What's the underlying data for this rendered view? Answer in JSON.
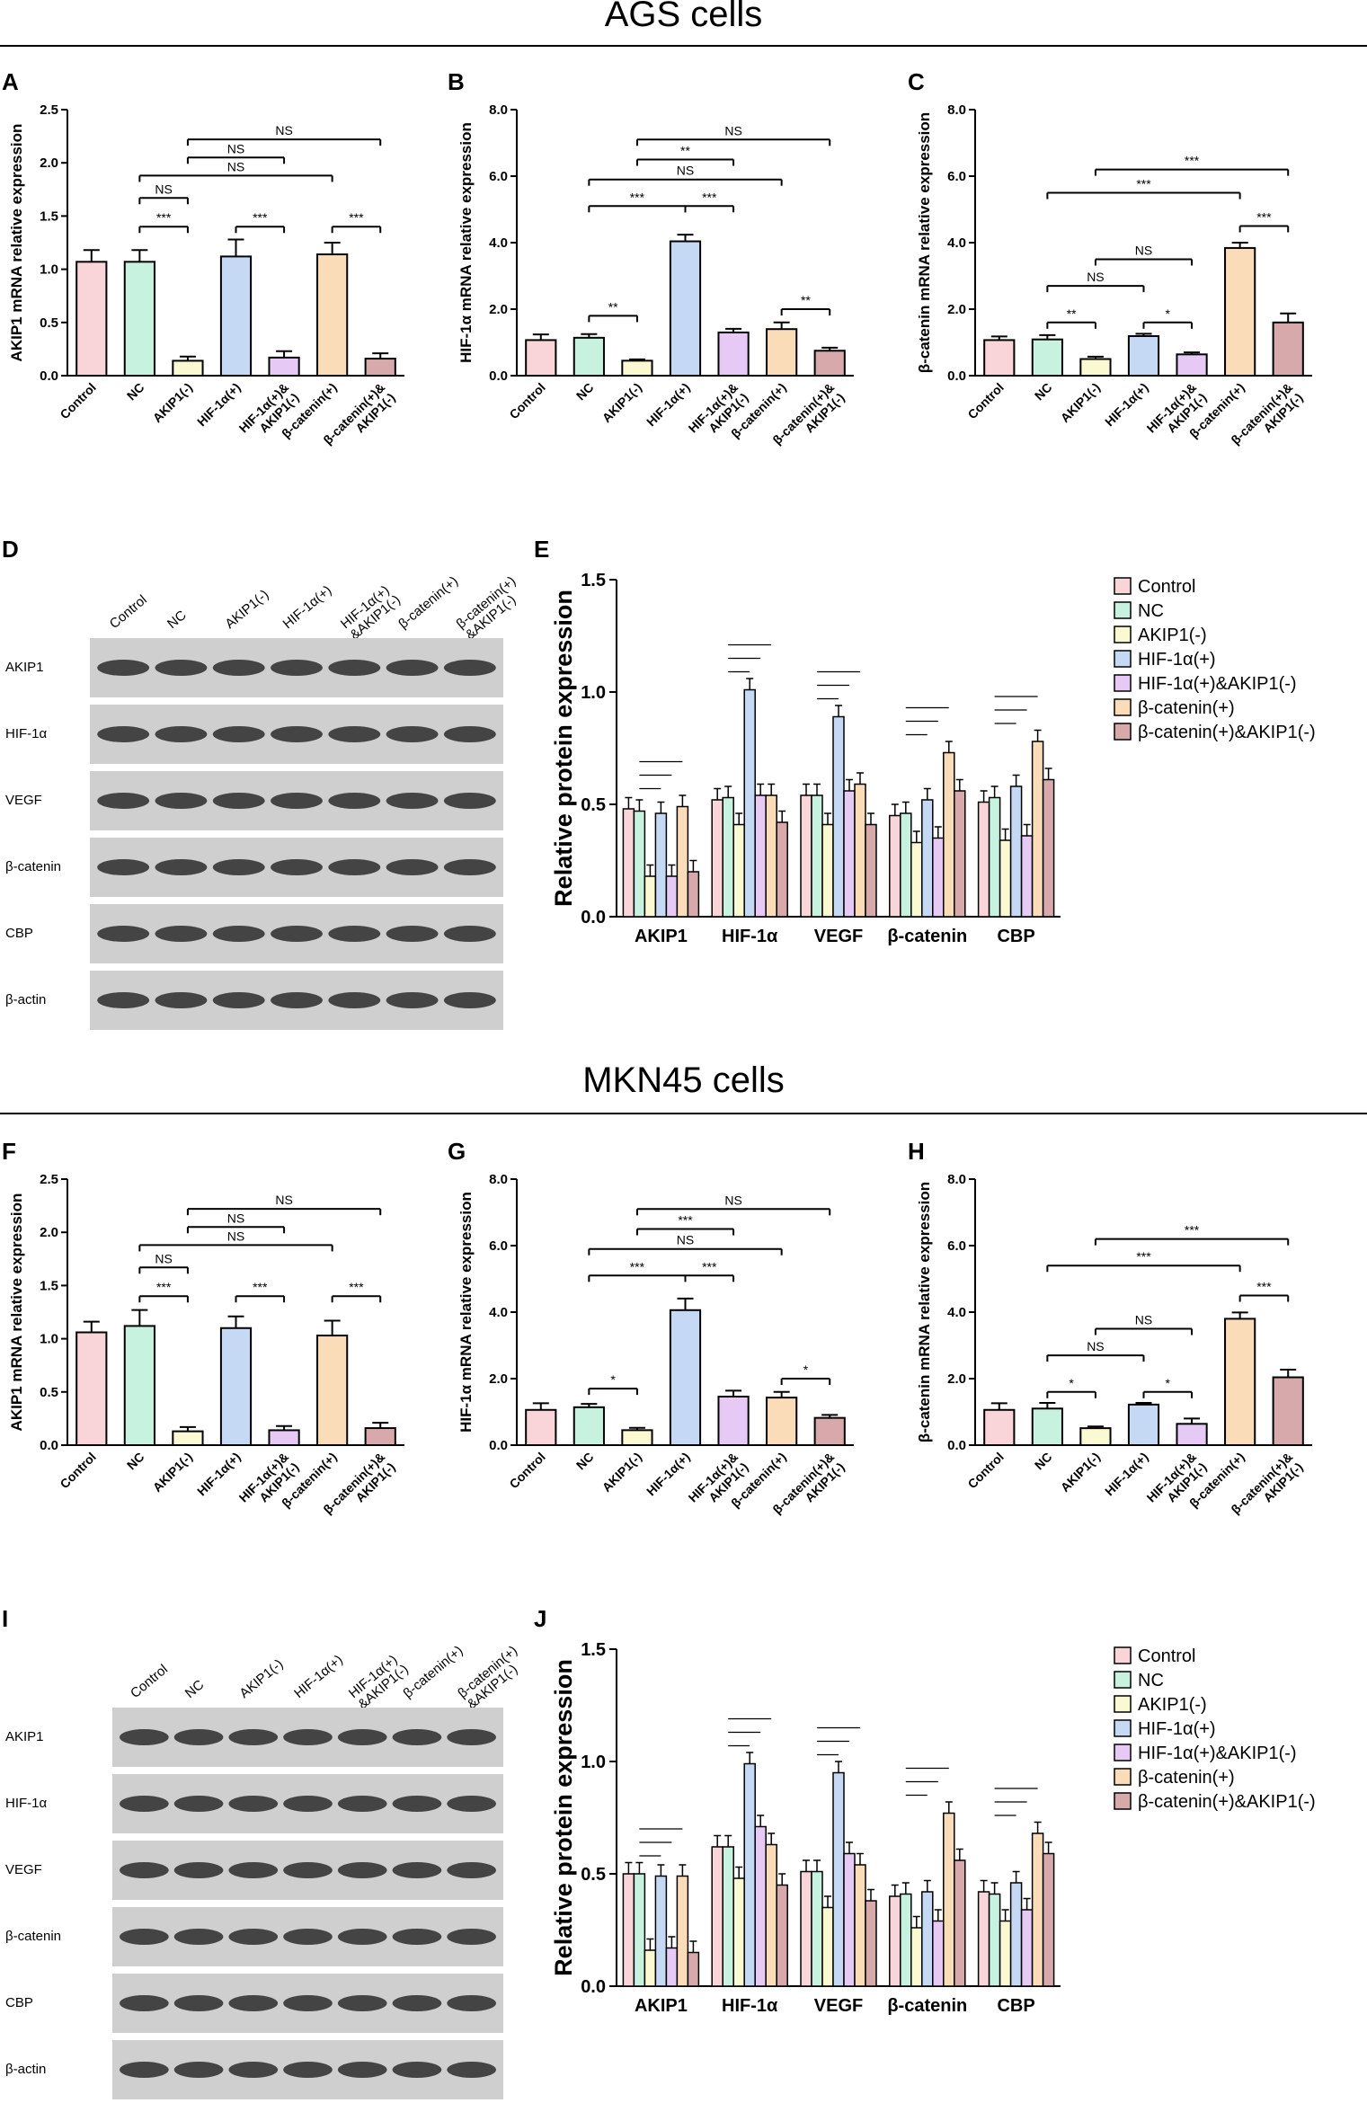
{
  "sections": [
    "AGS cells",
    "MKN45 cells"
  ],
  "colors": [
    "#f9d4d8",
    "#c8f2e0",
    "#fbf9d2",
    "#c6d9f4",
    "#e7c9f6",
    "#fbdcb8",
    "#d8a9aa"
  ],
  "groups": [
    "Control",
    "NC",
    "AKIP1(-)",
    "HIF-1α(+)",
    "HIF-1α(+)&AKIP1(-)",
    "β-catenin(+)",
    "β-catenin(+)&AKIP1(-)"
  ],
  "blot": {
    "lanes": [
      "Control",
      "NC",
      "AKIP1(-)",
      "HIF-1α(+)",
      "HIF-1α(+)\n&AKIP1(-)",
      "β-catenin(+)",
      "β-catenin(+)\n&AKIP1(-)"
    ],
    "rows": [
      "AKIP1",
      "HIF-1α",
      "VEGF",
      "β-catenin",
      "CBP",
      "β-actin"
    ]
  },
  "mrna_categories": [
    "Control",
    "NC",
    "AKIP1(-)",
    "HIF-1α(+)",
    "HIF-1α(+)&\nAKIP1(-)",
    "β-catenin(+)",
    "β-catenin(+)&\nAKIP1(-)"
  ],
  "panel_letters": {
    "A": "A",
    "B": "B",
    "C": "C",
    "D": "D",
    "E": "E",
    "F": "F",
    "G": "G",
    "H": "H",
    "I": "I",
    "J": "J"
  },
  "chart_data": [
    {
      "panel": "A",
      "type": "bar",
      "ylabel": "AKIP1 mRNA relative expression",
      "ylim": [
        0,
        2.5
      ],
      "yticks": [
        "0.0",
        "0.5",
        "1.0",
        "1.5",
        "2.0",
        "2.5"
      ],
      "values": [
        1.07,
        1.07,
        0.14,
        1.12,
        0.17,
        1.14,
        0.16
      ],
      "errors": [
        0.11,
        0.11,
        0.04,
        0.16,
        0.06,
        0.11,
        0.05
      ],
      "brackets": [
        {
          "from": 2,
          "to": 6,
          "label": "NS",
          "y": 2.22
        },
        {
          "from": 2,
          "to": 4,
          "label": "NS",
          "y": 2.05
        },
        {
          "from": 1,
          "to": 5,
          "label": "NS",
          "y": 1.88
        },
        {
          "from": 1,
          "to": 2,
          "label": "NS",
          "y": 1.67
        },
        {
          "from": 1,
          "to": 2,
          "label": "***",
          "y": 1.4
        },
        {
          "from": 3,
          "to": 4,
          "label": "***",
          "y": 1.4
        },
        {
          "from": 5,
          "to": 6,
          "label": "***",
          "y": 1.4
        }
      ]
    },
    {
      "panel": "B",
      "type": "bar",
      "ylabel": "HIF-1α mRNA relative expression",
      "ylim": [
        0,
        8
      ],
      "yticks": [
        "0.0",
        "2.0",
        "4.0",
        "6.0",
        "8.0"
      ],
      "values": [
        1.07,
        1.14,
        0.45,
        4.04,
        1.3,
        1.4,
        0.75
      ],
      "errors": [
        0.17,
        0.11,
        0.04,
        0.2,
        0.11,
        0.2,
        0.09
      ],
      "brackets": [
        {
          "from": 2,
          "to": 6,
          "label": "NS",
          "y": 7.1
        },
        {
          "from": 2,
          "to": 4,
          "label": "**",
          "y": 6.5
        },
        {
          "from": 1,
          "to": 5,
          "label": "NS",
          "y": 5.9
        },
        {
          "from": 1,
          "to": 3,
          "label": "***",
          "y": 5.1
        },
        {
          "from": 3,
          "to": 4,
          "label": "***",
          "y": 5.1
        },
        {
          "from": 1,
          "to": 2,
          "label": "**",
          "y": 1.8
        },
        {
          "from": 5,
          "to": 6,
          "label": "**",
          "y": 2.0
        }
      ]
    },
    {
      "panel": "C",
      "type": "bar",
      "ylabel": "β-catenin mRNA relative expression",
      "ylim": [
        0,
        8
      ],
      "yticks": [
        "0.0",
        "2.0",
        "4.0",
        "6.0",
        "8.0"
      ],
      "values": [
        1.07,
        1.09,
        0.5,
        1.19,
        0.64,
        3.84,
        1.6
      ],
      "errors": [
        0.11,
        0.13,
        0.07,
        0.07,
        0.06,
        0.16,
        0.27
      ],
      "brackets": [
        {
          "from": 2,
          "to": 6,
          "label": "***",
          "y": 6.2
        },
        {
          "from": 1,
          "to": 5,
          "label": "***",
          "y": 5.5
        },
        {
          "from": 2,
          "to": 4,
          "label": "NS",
          "y": 3.5
        },
        {
          "from": 1,
          "to": 3,
          "label": "NS",
          "y": 2.7
        },
        {
          "from": 1,
          "to": 2,
          "label": "**",
          "y": 1.6
        },
        {
          "from": 3,
          "to": 4,
          "label": "*",
          "y": 1.6
        },
        {
          "from": 5,
          "to": 6,
          "label": "***",
          "y": 4.5
        }
      ]
    },
    {
      "panel": "E",
      "type": "grouped-bar",
      "ylabel": "Relative protein expression",
      "ylim": [
        0,
        1.5
      ],
      "yticks": [
        "0.0",
        "0.5",
        "1.0",
        "1.5"
      ],
      "categories": [
        "AKIP1",
        "HIF-1α",
        "VEGF",
        "β-catenin",
        "CBP"
      ],
      "series": [
        {
          "name": "Control",
          "values": [
            0.48,
            0.52,
            0.54,
            0.45,
            0.51
          ]
        },
        {
          "name": "NC",
          "values": [
            0.47,
            0.53,
            0.54,
            0.46,
            0.53
          ]
        },
        {
          "name": "AKIP1(-)",
          "values": [
            0.18,
            0.41,
            0.41,
            0.33,
            0.34
          ]
        },
        {
          "name": "HIF-1α(+)",
          "values": [
            0.46,
            1.01,
            0.89,
            0.52,
            0.58
          ]
        },
        {
          "name": "HIF-1α(+)&AKIP1(-)",
          "values": [
            0.18,
            0.54,
            0.56,
            0.35,
            0.36
          ]
        },
        {
          "name": "β-catenin(+)",
          "values": [
            0.49,
            0.54,
            0.59,
            0.73,
            0.78
          ]
        },
        {
          "name": "β-catenin(+)&AKIP1(-)",
          "values": [
            0.2,
            0.42,
            0.41,
            0.56,
            0.61
          ]
        }
      ]
    },
    {
      "panel": "F",
      "type": "bar",
      "ylabel": "AKIP1 mRNA relative expression",
      "ylim": [
        0,
        2.5
      ],
      "yticks": [
        "0.0",
        "0.5",
        "1.0",
        "1.5",
        "2.0",
        "2.5"
      ],
      "values": [
        1.06,
        1.12,
        0.13,
        1.1,
        0.14,
        1.03,
        0.16
      ],
      "errors": [
        0.1,
        0.15,
        0.04,
        0.11,
        0.04,
        0.14,
        0.05
      ],
      "brackets": [
        {
          "from": 2,
          "to": 6,
          "label": "NS",
          "y": 2.22
        },
        {
          "from": 2,
          "to": 4,
          "label": "NS",
          "y": 2.05
        },
        {
          "from": 1,
          "to": 5,
          "label": "NS",
          "y": 1.88
        },
        {
          "from": 1,
          "to": 2,
          "label": "NS",
          "y": 1.67
        },
        {
          "from": 1,
          "to": 2,
          "label": "***",
          "y": 1.4
        },
        {
          "from": 3,
          "to": 4,
          "label": "***",
          "y": 1.4
        },
        {
          "from": 5,
          "to": 6,
          "label": "***",
          "y": 1.4
        }
      ]
    },
    {
      "panel": "G",
      "type": "bar",
      "ylabel": "HIF-1α mRNA relative expression",
      "ylim": [
        0,
        8
      ],
      "yticks": [
        "0.0",
        "2.0",
        "4.0",
        "6.0",
        "8.0"
      ],
      "values": [
        1.06,
        1.14,
        0.45,
        4.06,
        1.46,
        1.43,
        0.82
      ],
      "errors": [
        0.2,
        0.1,
        0.07,
        0.35,
        0.18,
        0.17,
        0.09
      ],
      "brackets": [
        {
          "from": 2,
          "to": 6,
          "label": "NS",
          "y": 7.1
        },
        {
          "from": 2,
          "to": 4,
          "label": "***",
          "y": 6.5
        },
        {
          "from": 1,
          "to": 5,
          "label": "NS",
          "y": 5.9
        },
        {
          "from": 1,
          "to": 3,
          "label": "***",
          "y": 5.1
        },
        {
          "from": 3,
          "to": 4,
          "label": "***",
          "y": 5.1
        },
        {
          "from": 1,
          "to": 2,
          "label": "*",
          "y": 1.7
        },
        {
          "from": 5,
          "to": 6,
          "label": "*",
          "y": 2.0
        }
      ]
    },
    {
      "panel": "H",
      "type": "bar",
      "ylabel": "β-catenin mRNA relative expression",
      "ylim": [
        0,
        8
      ],
      "yticks": [
        "0.0",
        "2.0",
        "4.0",
        "6.0",
        "8.0"
      ],
      "values": [
        1.06,
        1.1,
        0.51,
        1.22,
        0.64,
        3.8,
        2.04
      ],
      "errors": [
        0.2,
        0.17,
        0.05,
        0.05,
        0.16,
        0.19,
        0.23
      ],
      "brackets": [
        {
          "from": 2,
          "to": 6,
          "label": "***",
          "y": 6.2
        },
        {
          "from": 1,
          "to": 5,
          "label": "***",
          "y": 5.4
        },
        {
          "from": 2,
          "to": 4,
          "label": "NS",
          "y": 3.5
        },
        {
          "from": 1,
          "to": 3,
          "label": "NS",
          "y": 2.7
        },
        {
          "from": 1,
          "to": 2,
          "label": "*",
          "y": 1.6
        },
        {
          "from": 3,
          "to": 4,
          "label": "*",
          "y": 1.6
        },
        {
          "from": 5,
          "to": 6,
          "label": "***",
          "y": 4.5
        }
      ]
    },
    {
      "panel": "J",
      "type": "grouped-bar",
      "ylabel": "Relative protein expression",
      "ylim": [
        0,
        1.5
      ],
      "yticks": [
        "0.0",
        "0.5",
        "1.0",
        "1.5"
      ],
      "categories": [
        "AKIP1",
        "HIF-1α",
        "VEGF",
        "β-catenin",
        "CBP"
      ],
      "series": [
        {
          "name": "Control",
          "values": [
            0.5,
            0.62,
            0.51,
            0.4,
            0.42
          ]
        },
        {
          "name": "NC",
          "values": [
            0.5,
            0.62,
            0.51,
            0.41,
            0.41
          ]
        },
        {
          "name": "AKIP1(-)",
          "values": [
            0.16,
            0.48,
            0.35,
            0.26,
            0.29
          ]
        },
        {
          "name": "HIF-1α(+)",
          "values": [
            0.49,
            0.99,
            0.95,
            0.42,
            0.46
          ]
        },
        {
          "name": "HIF-1α(+)&AKIP1(-)",
          "values": [
            0.17,
            0.71,
            0.59,
            0.29,
            0.34
          ]
        },
        {
          "name": "β-catenin(+)",
          "values": [
            0.49,
            0.63,
            0.54,
            0.77,
            0.68
          ]
        },
        {
          "name": "β-catenin(+)&AKIP1(-)",
          "values": [
            0.15,
            0.45,
            0.38,
            0.56,
            0.59
          ]
        }
      ]
    }
  ]
}
